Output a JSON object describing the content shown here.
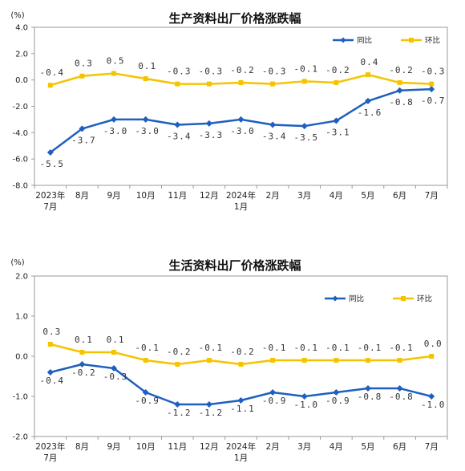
{
  "chart_data": [
    {
      "type": "line",
      "title": "生产资料出厂价格涨跌幅",
      "unit": "(%)",
      "categories": [
        [
          "2023年",
          "7月"
        ],
        [
          "8月"
        ],
        [
          "9月"
        ],
        [
          "10月"
        ],
        [
          "11月"
        ],
        [
          "12月"
        ],
        [
          "2024年",
          "1月"
        ],
        [
          "2月"
        ],
        [
          "3月"
        ],
        [
          "4月"
        ],
        [
          "5月"
        ],
        [
          "6月"
        ],
        [
          "7月"
        ]
      ],
      "ylim": [
        -8.0,
        4.0
      ],
      "yticks": [
        "4.0",
        "2.0",
        "0.0",
        "-2.0",
        "-4.0",
        "-6.0",
        "-8.0"
      ],
      "ytick_values": [
        4,
        2,
        0,
        -2,
        -4,
        -6,
        -8
      ],
      "legend_position": "top-right",
      "grid": false,
      "series": [
        {
          "name": "同比",
          "color": "#1f5fbf",
          "marker": "diamond",
          "values": [
            -5.5,
            -3.7,
            -3.0,
            -3.0,
            -3.4,
            -3.3,
            -3.0,
            -3.4,
            -3.5,
            -3.1,
            -1.6,
            -0.8,
            -0.7
          ],
          "labels": [
            "-5.5",
            "-3.7",
            "-3.0",
            "-3.0",
            "-3.4",
            "-3.3",
            "-3.0",
            "-3.4",
            "-3.5",
            "-3.1",
            "-1.6",
            "-0.8",
            "-0.7"
          ]
        },
        {
          "name": "环比",
          "color": "#f5c400",
          "marker": "square",
          "values": [
            -0.4,
            0.3,
            0.5,
            0.1,
            -0.3,
            -0.3,
            -0.2,
            -0.3,
            -0.1,
            -0.2,
            0.4,
            -0.2,
            -0.3
          ],
          "labels": [
            "-0.4",
            "0.3",
            "0.5",
            "0.1",
            "-0.3",
            "-0.3",
            "-0.2",
            "-0.3",
            "-0.1",
            "-0.2",
            "0.4",
            "-0.2",
            "-0.3"
          ]
        }
      ]
    },
    {
      "type": "line",
      "title": "生活资料出厂价格涨跌幅",
      "unit": "(%)",
      "categories": [
        [
          "2023年",
          "7月"
        ],
        [
          "8月"
        ],
        [
          "9月"
        ],
        [
          "10月"
        ],
        [
          "11月"
        ],
        [
          "12月"
        ],
        [
          "2024年",
          "1月"
        ],
        [
          "2月"
        ],
        [
          "3月"
        ],
        [
          "4月"
        ],
        [
          "5月"
        ],
        [
          "6月"
        ],
        [
          "7月"
        ]
      ],
      "ylim": [
        -2.0,
        2.0
      ],
      "yticks": [
        "2.0",
        "1.0",
        "0.0",
        "-1.0",
        "-2.0"
      ],
      "ytick_values": [
        2,
        1,
        0,
        -1,
        -2
      ],
      "legend_position": "top-right",
      "grid": false,
      "series": [
        {
          "name": "同比",
          "color": "#1f5fbf",
          "marker": "diamond",
          "values": [
            -0.4,
            -0.2,
            -0.3,
            -0.9,
            -1.2,
            -1.2,
            -1.1,
            -0.9,
            -1.0,
            -0.9,
            -0.8,
            -0.8,
            -1.0
          ],
          "labels": [
            "-0.4",
            "-0.2",
            "-0.3",
            "-0.9",
            "-1.2",
            "-1.2",
            "-1.1",
            "-0.9",
            "-1.0",
            "-0.9",
            "-0.8",
            "-0.8",
            "-1.0"
          ]
        },
        {
          "name": "环比",
          "color": "#f5c400",
          "marker": "square",
          "values": [
            0.3,
            0.1,
            0.1,
            -0.1,
            -0.2,
            -0.1,
            -0.2,
            -0.1,
            -0.1,
            -0.1,
            -0.1,
            -0.1,
            0.0
          ],
          "labels": [
            "0.3",
            "0.1",
            "0.1",
            "-0.1",
            "-0.2",
            "-0.1",
            "-0.2",
            "-0.1",
            "-0.1",
            "-0.1",
            "-0.1",
            "-0.1",
            "0.0"
          ]
        }
      ]
    }
  ]
}
